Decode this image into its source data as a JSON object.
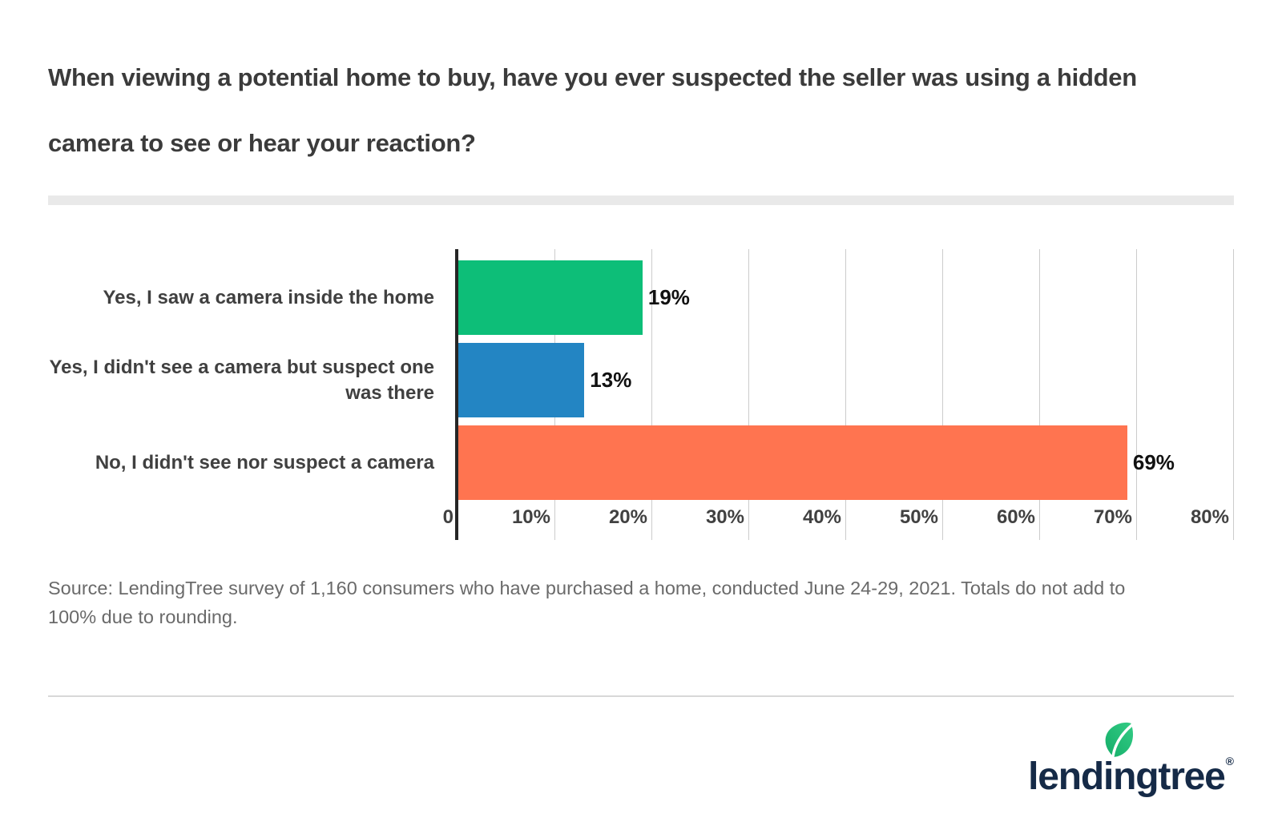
{
  "title": "When viewing a potential home to buy, have you ever suspected the seller was using a hidden\ncamera to see or hear your reaction?",
  "chart_data": {
    "type": "bar",
    "orientation": "horizontal",
    "categories": [
      "Yes, I saw a camera inside the home",
      "Yes, I didn't see a camera but suspect one\nwas there",
      "No, I didn't see nor suspect a camera"
    ],
    "values": [
      19,
      13,
      69
    ],
    "value_labels": [
      "19%",
      "13%",
      "69%"
    ],
    "bar_colors": [
      "#0dbe78",
      "#2385c3",
      "#ff7450"
    ],
    "title": "When viewing a potential home to buy, have you ever suspected the seller was using a hidden camera to see or hear your reaction?",
    "xlabel": "",
    "ylabel": "",
    "xlim": [
      0,
      80
    ],
    "tick_step": 10,
    "x_ticks": [
      "0",
      "10%",
      "20%",
      "30%",
      "40%",
      "50%",
      "60%",
      "70%",
      "80%"
    ],
    "grid": true,
    "legend": false
  },
  "source_note": "Source: LendingTree survey of 1,160 consumers who have purchased a home, conducted June 24-29, 2021. Totals do not add to\n100% due to rounding.",
  "brand": {
    "logo_text": "lendingtree",
    "registered_mark": "®",
    "navy": "#152a47",
    "leaf_green_light": "#33cc85",
    "leaf_green_dark": "#14ad68"
  }
}
